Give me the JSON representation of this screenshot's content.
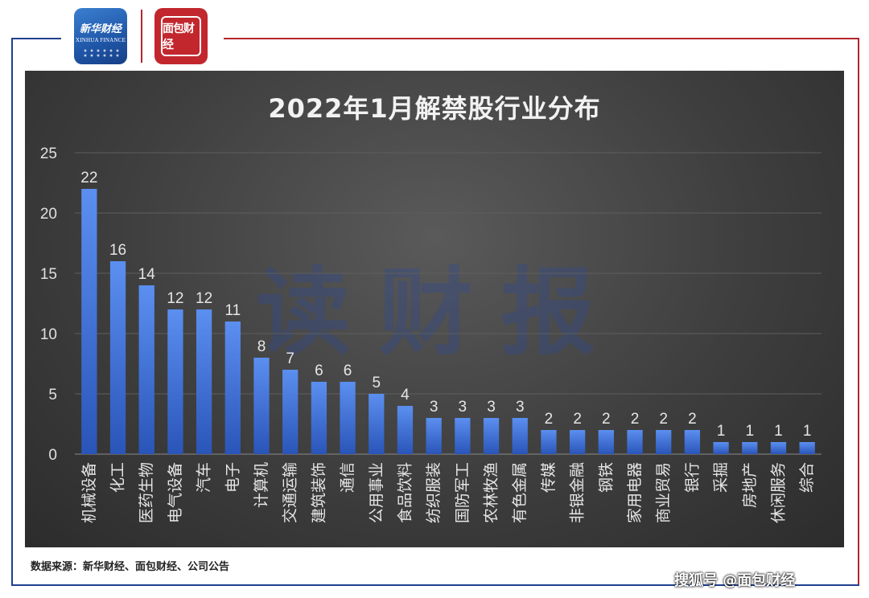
{
  "brand": {
    "xinhua_logo_text": "新华财经",
    "xinhua_logo_subtext": "XINHUA FINANCE",
    "mianbao_logo_text": "面包财经"
  },
  "watermark": "读财报",
  "source_note": "数据来源：新华财经、面包财经、公司公告",
  "credit": "搜狐号 @面包财经",
  "colors": {
    "bar_top": "#5b8ff0",
    "bar_bottom": "#2a55b8",
    "panel": "#3e3e3e",
    "text": "#e6e6e6",
    "frame_blue": "#1f3f8f",
    "frame_red": "#b3262c"
  },
  "chart_data": {
    "type": "bar",
    "title": "2022年1月解禁股行业分布",
    "categories": [
      "机械设备",
      "化工",
      "医药生物",
      "电气设备",
      "汽车",
      "电子",
      "计算机",
      "交通运输",
      "建筑装饰",
      "通信",
      "公用事业",
      "食品饮料",
      "纺织服装",
      "国防军工",
      "农林牧渔",
      "有色金属",
      "传媒",
      "非银金融",
      "钢铁",
      "家用电器",
      "商业贸易",
      "银行",
      "采掘",
      "房地产",
      "休闲服务",
      "综合"
    ],
    "values": [
      22,
      16,
      14,
      12,
      12,
      11,
      8,
      7,
      6,
      6,
      5,
      4,
      3,
      3,
      3,
      3,
      2,
      2,
      2,
      2,
      2,
      2,
      1,
      1,
      1,
      1
    ],
    "yticks": [
      0,
      5,
      10,
      15,
      20,
      25
    ],
    "ylim": [
      0,
      25
    ],
    "xlabel": "",
    "ylabel": "",
    "grid": true,
    "data_labels": true
  }
}
